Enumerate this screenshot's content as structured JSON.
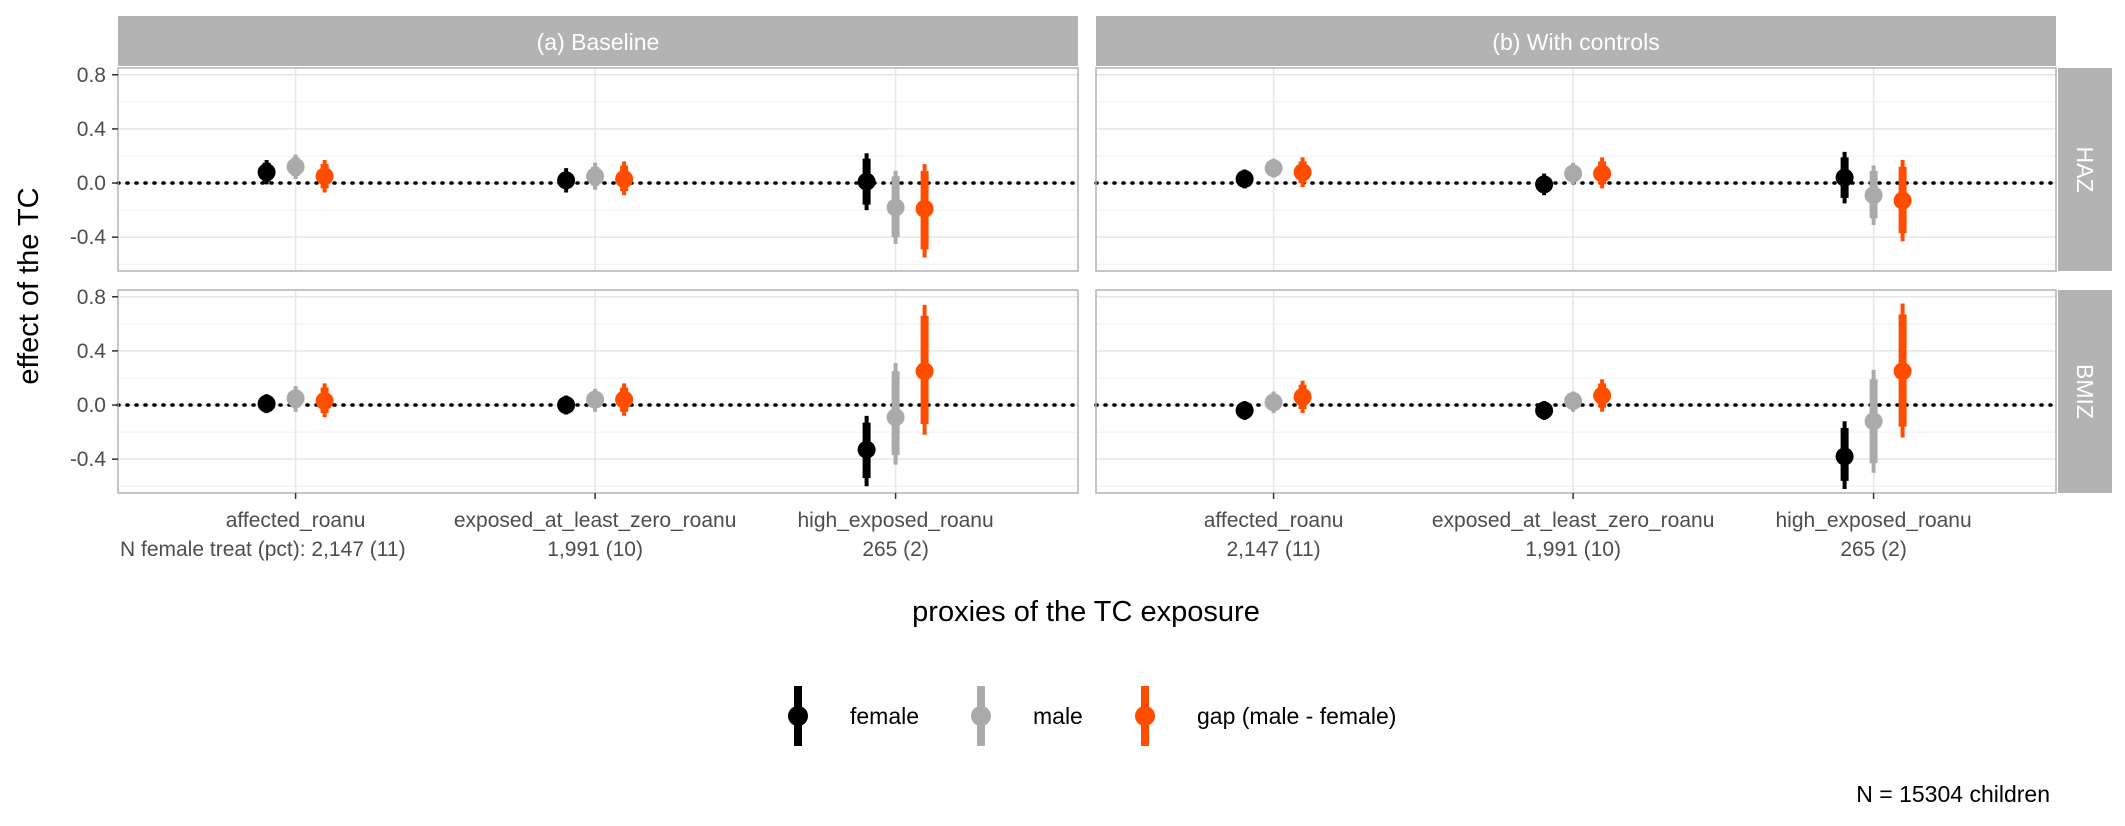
{
  "chart_data": {
    "type": "scatter",
    "geom": "pointrange",
    "facet_cols": [
      "(a) Baseline",
      "(b) With controls"
    ],
    "facet_rows": [
      "HAZ",
      "BMIZ"
    ],
    "categories": [
      "affected_roanu",
      "exposed_at_least_zero_roanu",
      "high_exposed_roanu"
    ],
    "n_labels": [
      [
        "N female treat (pct): 2,147 (11)",
        "1,991 (10)",
        "265 (2)"
      ],
      [
        "2,147 (11)",
        "1,991 (10)",
        "265 (2)"
      ]
    ],
    "ylim": [
      -0.65,
      0.85
    ],
    "yticks": [
      0.8,
      0.4,
      0.0,
      -0.4
    ],
    "ytick_labels": [
      "0.8",
      "0.4",
      "0.0",
      "-0.4"
    ],
    "xlabel": "proxies of the TC exposure",
    "ylabel": "effect of the TC",
    "reference_line": 0,
    "legend_position": "bottom",
    "caption": "N = 15304 children",
    "grid": true,
    "series": [
      {
        "name": "female",
        "color": "#000000"
      },
      {
        "name": "male",
        "color": "#aaaaaa"
      },
      {
        "name": "gap (male - female)",
        "color": "#ff4d00"
      }
    ],
    "panels": [
      {
        "col": "(a) Baseline",
        "row": "HAZ",
        "points": [
          {
            "category": "affected_roanu",
            "series": "female",
            "y": 0.08,
            "ci90": [
              0.01,
              0.15
            ],
            "ci95": [
              -0.01,
              0.17
            ]
          },
          {
            "category": "affected_roanu",
            "series": "male",
            "y": 0.12,
            "ci90": [
              0.05,
              0.19
            ],
            "ci95": [
              0.03,
              0.21
            ]
          },
          {
            "category": "affected_roanu",
            "series": "gap (male - female)",
            "y": 0.05,
            "ci90": [
              -0.04,
              0.14
            ],
            "ci95": [
              -0.07,
              0.17
            ]
          },
          {
            "category": "exposed_at_least_zero_roanu",
            "series": "female",
            "y": 0.02,
            "ci90": [
              -0.04,
              0.08
            ],
            "ci95": [
              -0.07,
              0.11
            ]
          },
          {
            "category": "exposed_at_least_zero_roanu",
            "series": "male",
            "y": 0.05,
            "ci90": [
              -0.02,
              0.12
            ],
            "ci95": [
              -0.05,
              0.15
            ]
          },
          {
            "category": "exposed_at_least_zero_roanu",
            "series": "gap (male - female)",
            "y": 0.03,
            "ci90": [
              -0.06,
              0.13
            ],
            "ci95": [
              -0.09,
              0.16
            ]
          },
          {
            "category": "high_exposed_roanu",
            "series": "female",
            "y": 0.01,
            "ci90": [
              -0.16,
              0.18
            ],
            "ci95": [
              -0.2,
              0.22
            ]
          },
          {
            "category": "high_exposed_roanu",
            "series": "male",
            "y": -0.18,
            "ci90": [
              -0.4,
              0.05
            ],
            "ci95": [
              -0.45,
              0.09
            ]
          },
          {
            "category": "high_exposed_roanu",
            "series": "gap (male - female)",
            "y": -0.19,
            "ci90": [
              -0.49,
              0.09
            ],
            "ci95": [
              -0.55,
              0.14
            ]
          }
        ]
      },
      {
        "col": "(b) With controls",
        "row": "HAZ",
        "points": [
          {
            "category": "affected_roanu",
            "series": "female",
            "y": 0.03,
            "ci90": [
              -0.02,
              0.08
            ],
            "ci95": [
              -0.04,
              0.1
            ]
          },
          {
            "category": "affected_roanu",
            "series": "male",
            "y": 0.11,
            "ci90": [
              0.06,
              0.16
            ],
            "ci95": [
              0.04,
              0.18
            ]
          },
          {
            "category": "affected_roanu",
            "series": "gap (male - female)",
            "y": 0.08,
            "ci90": [
              0.0,
              0.16
            ],
            "ci95": [
              -0.03,
              0.19
            ]
          },
          {
            "category": "exposed_at_least_zero_roanu",
            "series": "female",
            "y": -0.01,
            "ci90": [
              -0.06,
              0.04
            ],
            "ci95": [
              -0.09,
              0.07
            ]
          },
          {
            "category": "exposed_at_least_zero_roanu",
            "series": "male",
            "y": 0.07,
            "ci90": [
              0.02,
              0.12
            ],
            "ci95": [
              -0.01,
              0.15
            ]
          },
          {
            "category": "exposed_at_least_zero_roanu",
            "series": "gap (male - female)",
            "y": 0.07,
            "ci90": [
              -0.01,
              0.16
            ],
            "ci95": [
              -0.04,
              0.19
            ]
          },
          {
            "category": "high_exposed_roanu",
            "series": "female",
            "y": 0.04,
            "ci90": [
              -0.11,
              0.19
            ],
            "ci95": [
              -0.15,
              0.23
            ]
          },
          {
            "category": "high_exposed_roanu",
            "series": "male",
            "y": -0.09,
            "ci90": [
              -0.26,
              0.09
            ],
            "ci95": [
              -0.31,
              0.13
            ]
          },
          {
            "category": "high_exposed_roanu",
            "series": "gap (male - female)",
            "y": -0.13,
            "ci90": [
              -0.37,
              0.12
            ],
            "ci95": [
              -0.43,
              0.17
            ]
          }
        ]
      },
      {
        "col": "(a) Baseline",
        "row": "BMIZ",
        "points": [
          {
            "category": "affected_roanu",
            "series": "female",
            "y": 0.01,
            "ci90": [
              -0.04,
              0.06
            ],
            "ci95": [
              -0.06,
              0.08
            ]
          },
          {
            "category": "affected_roanu",
            "series": "male",
            "y": 0.05,
            "ci90": [
              -0.02,
              0.11
            ],
            "ci95": [
              -0.05,
              0.14
            ]
          },
          {
            "category": "affected_roanu",
            "series": "gap (male - female)",
            "y": 0.03,
            "ci90": [
              -0.06,
              0.13
            ],
            "ci95": [
              -0.09,
              0.16
            ]
          },
          {
            "category": "exposed_at_least_zero_roanu",
            "series": "female",
            "y": 0.0,
            "ci90": [
              -0.05,
              0.05
            ],
            "ci95": [
              -0.07,
              0.07
            ]
          },
          {
            "category": "exposed_at_least_zero_roanu",
            "series": "male",
            "y": 0.04,
            "ci90": [
              -0.02,
              0.1
            ],
            "ci95": [
              -0.05,
              0.12
            ]
          },
          {
            "category": "exposed_at_least_zero_roanu",
            "series": "gap (male - female)",
            "y": 0.04,
            "ci90": [
              -0.05,
              0.13
            ],
            "ci95": [
              -0.08,
              0.16
            ]
          },
          {
            "category": "high_exposed_roanu",
            "series": "female",
            "y": -0.33,
            "ci90": [
              -0.54,
              -0.13
            ],
            "ci95": [
              -0.6,
              -0.08
            ]
          },
          {
            "category": "high_exposed_roanu",
            "series": "male",
            "y": -0.09,
            "ci90": [
              -0.37,
              0.25
            ],
            "ci95": [
              -0.44,
              0.31
            ]
          },
          {
            "category": "high_exposed_roanu",
            "series": "gap (male - female)",
            "y": 0.25,
            "ci90": [
              -0.14,
              0.66
            ],
            "ci95": [
              -0.22,
              0.74
            ]
          }
        ]
      },
      {
        "col": "(b) With controls",
        "row": "BMIZ",
        "points": [
          {
            "category": "affected_roanu",
            "series": "female",
            "y": -0.04,
            "ci90": [
              -0.09,
              0.01
            ],
            "ci95": [
              -0.11,
              0.03
            ]
          },
          {
            "category": "affected_roanu",
            "series": "male",
            "y": 0.02,
            "ci90": [
              -0.04,
              0.07
            ],
            "ci95": [
              -0.06,
              0.1
            ]
          },
          {
            "category": "affected_roanu",
            "series": "gap (male - female)",
            "y": 0.06,
            "ci90": [
              -0.03,
              0.15
            ],
            "ci95": [
              -0.06,
              0.18
            ]
          },
          {
            "category": "exposed_at_least_zero_roanu",
            "series": "female",
            "y": -0.04,
            "ci90": [
              -0.09,
              0.01
            ],
            "ci95": [
              -0.11,
              0.03
            ]
          },
          {
            "category": "exposed_at_least_zero_roanu",
            "series": "male",
            "y": 0.03,
            "ci90": [
              -0.03,
              0.08
            ],
            "ci95": [
              -0.05,
              0.1
            ]
          },
          {
            "category": "exposed_at_least_zero_roanu",
            "series": "gap (male - female)",
            "y": 0.07,
            "ci90": [
              -0.02,
              0.16
            ],
            "ci95": [
              -0.05,
              0.19
            ]
          },
          {
            "category": "high_exposed_roanu",
            "series": "female",
            "y": -0.38,
            "ci90": [
              -0.56,
              -0.17
            ],
            "ci95": [
              -0.62,
              -0.12
            ]
          },
          {
            "category": "high_exposed_roanu",
            "series": "male",
            "y": -0.12,
            "ci90": [
              -0.43,
              0.19
            ],
            "ci95": [
              -0.5,
              0.26
            ]
          },
          {
            "category": "high_exposed_roanu",
            "series": "gap (male - female)",
            "y": 0.25,
            "ci90": [
              -0.16,
              0.67
            ],
            "ci95": [
              -0.24,
              0.75
            ]
          }
        ]
      }
    ]
  }
}
